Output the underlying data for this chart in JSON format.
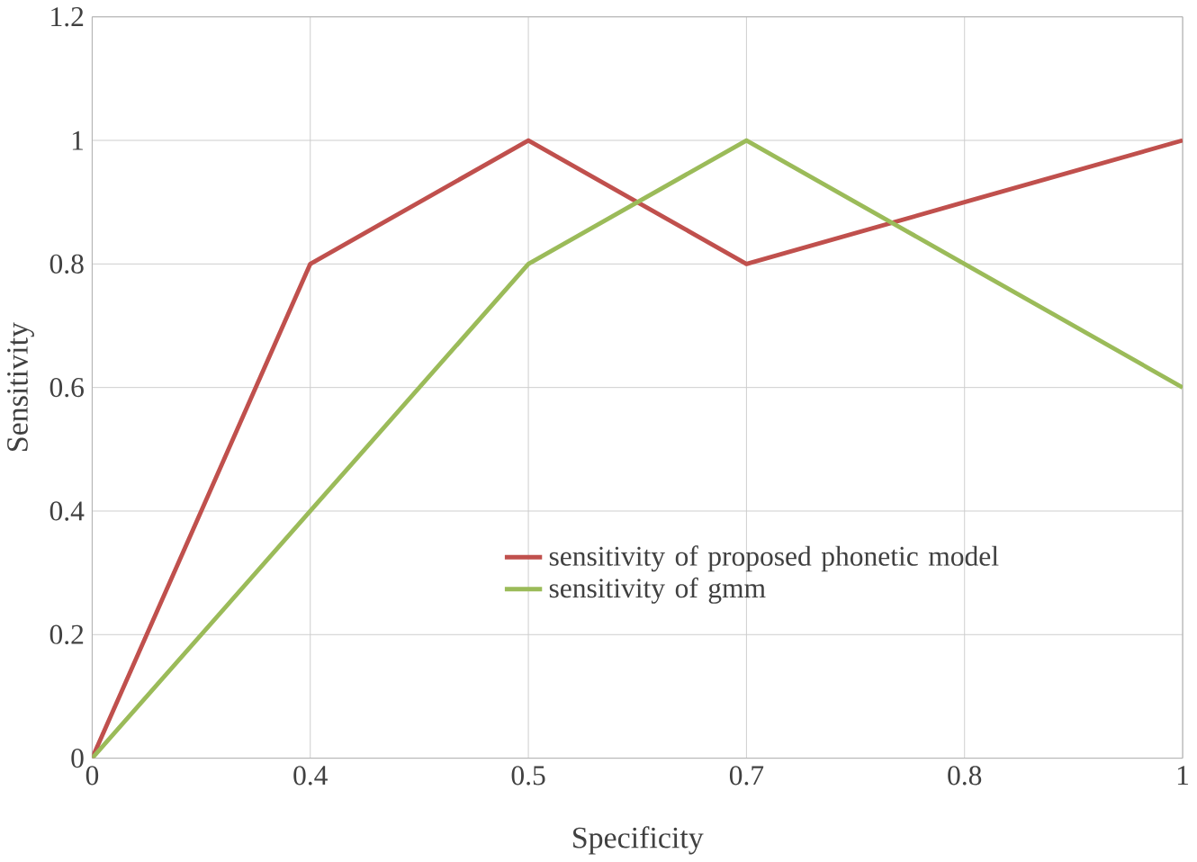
{
  "chart_data": {
    "type": "line",
    "xlabel": "Specificity",
    "ylabel": "Sensitivity",
    "categories": [
      "0",
      "0.4",
      "0.5",
      "0.7",
      "0.8",
      "1"
    ],
    "series": [
      {
        "name": "sensitivity of proposed phonetic model",
        "color": "#c0504d",
        "values": [
          0,
          0.8,
          1,
          0.8,
          0.9,
          1
        ]
      },
      {
        "name": "sensitivity of gmm",
        "color": "#9bbb59",
        "values": [
          0,
          0.4,
          0.8,
          1,
          0.8,
          0.6
        ]
      }
    ],
    "ylim": [
      0,
      1.2
    ],
    "yticks": [
      0,
      0.2,
      0.4,
      0.6,
      0.8,
      1,
      1.2
    ],
    "grid": true,
    "legend": "right",
    "marker": "none",
    "line_style": "solid"
  }
}
